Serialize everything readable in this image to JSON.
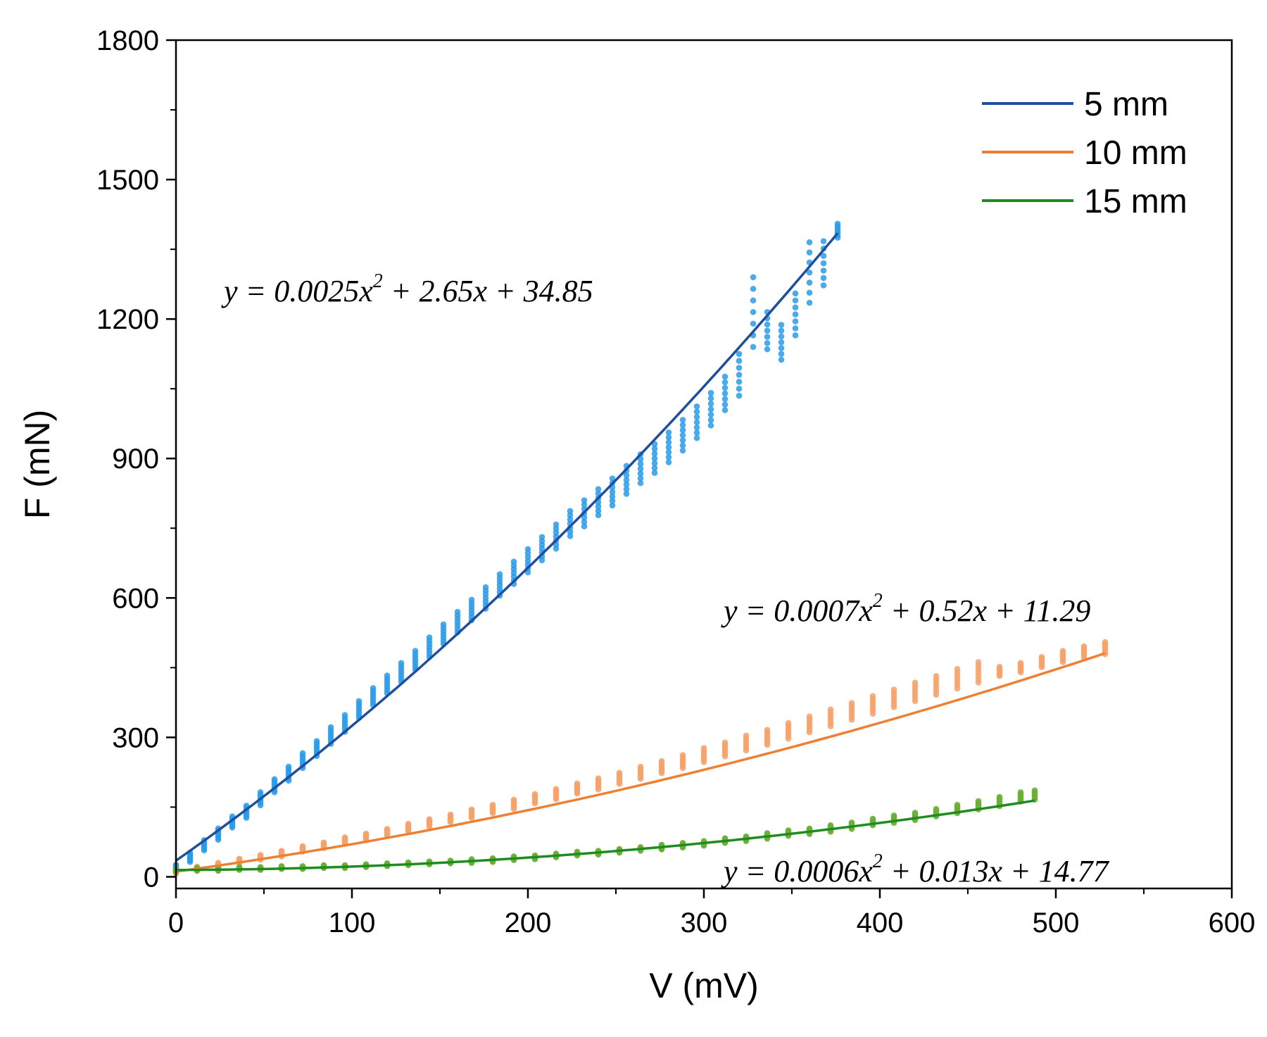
{
  "chart_data": {
    "type": "scatter",
    "title": "",
    "xlabel": "V (mV)",
    "ylabel": "F (mN)",
    "xlim": [
      0,
      600
    ],
    "ylim": [
      -25,
      1800
    ],
    "xticks": [
      0,
      100,
      200,
      300,
      400,
      500,
      600
    ],
    "yticks": [
      0,
      300,
      600,
      900,
      1200,
      1500,
      1800
    ],
    "grid": false,
    "legend_position": "top-right",
    "series": [
      {
        "name": "5 mm",
        "point_color": "#2b9be6",
        "fit_color": "#1f4e9e",
        "fit": {
          "a": 0.0025,
          "b": 2.65,
          "c": 34.85
        },
        "x_range": [
          0,
          376
        ],
        "equation": {
          "lhs": "y = 0.0025x",
          "exp": "2",
          "rhs": " + 2.65x + 34.85"
        },
        "dispersion": [
          [
            0,
            20,
            12
          ],
          [
            8,
            42,
            20
          ],
          [
            16,
            68,
            22
          ],
          [
            24,
            92,
            24
          ],
          [
            32,
            118,
            24
          ],
          [
            40,
            140,
            26
          ],
          [
            48,
            168,
            28
          ],
          [
            56,
            196,
            28
          ],
          [
            64,
            222,
            30
          ],
          [
            72,
            250,
            32
          ],
          [
            80,
            276,
            32
          ],
          [
            88,
            304,
            36
          ],
          [
            96,
            330,
            36
          ],
          [
            104,
            360,
            36
          ],
          [
            112,
            388,
            36
          ],
          [
            120,
            414,
            38
          ],
          [
            128,
            440,
            40
          ],
          [
            136,
            466,
            40
          ],
          [
            144,
            494,
            42
          ],
          [
            152,
            522,
            42
          ],
          [
            160,
            548,
            44
          ],
          [
            168,
            574,
            44
          ],
          [
            176,
            600,
            46
          ],
          [
            184,
            628,
            46
          ],
          [
            192,
            654,
            48
          ],
          [
            200,
            680,
            50
          ],
          [
            208,
            706,
            50
          ],
          [
            216,
            732,
            52
          ],
          [
            224,
            760,
            54
          ],
          [
            232,
            782,
            56
          ],
          [
            240,
            806,
            56
          ],
          [
            248,
            828,
            58
          ],
          [
            256,
            854,
            60
          ],
          [
            264,
            878,
            62
          ],
          [
            272,
            900,
            62
          ],
          [
            280,
            924,
            64
          ],
          [
            288,
            950,
            66
          ],
          [
            296,
            978,
            68
          ],
          [
            304,
            1006,
            70
          ],
          [
            312,
            1040,
            72
          ],
          [
            320,
            1080,
            90
          ],
          [
            328,
            1215,
            150
          ],
          [
            336,
            1175,
            80
          ],
          [
            344,
            1150,
            75
          ],
          [
            352,
            1210,
            90
          ],
          [
            360,
            1300,
            130
          ],
          [
            368,
            1320,
            95
          ],
          [
            376,
            1390,
            30
          ]
        ]
      },
      {
        "name": "10 mm",
        "point_color": "#f5a26b",
        "fit_color": "#ee7f33",
        "fit": {
          "a": 0.0007,
          "b": 0.52,
          "c": 11.29
        },
        "x_range": [
          0,
          528
        ],
        "equation": {
          "lhs": "y = 0.0007x",
          "exp": "2",
          "rhs": " + 0.52x + 11.29"
        },
        "dispersion": [
          [
            0,
            10,
            6
          ],
          [
            12,
            18,
            8
          ],
          [
            24,
            26,
            8
          ],
          [
            36,
            34,
            10
          ],
          [
            48,
            42,
            10
          ],
          [
            60,
            50,
            12
          ],
          [
            72,
            60,
            12
          ],
          [
            84,
            68,
            12
          ],
          [
            96,
            78,
            14
          ],
          [
            108,
            86,
            14
          ],
          [
            120,
            96,
            14
          ],
          [
            132,
            106,
            16
          ],
          [
            144,
            116,
            16
          ],
          [
            156,
            126,
            16
          ],
          [
            168,
            136,
            18
          ],
          [
            180,
            146,
            18
          ],
          [
            192,
            156,
            20
          ],
          [
            204,
            168,
            20
          ],
          [
            216,
            178,
            22
          ],
          [
            228,
            190,
            22
          ],
          [
            240,
            200,
            24
          ],
          [
            252,
            212,
            24
          ],
          [
            264,
            224,
            26
          ],
          [
            276,
            236,
            26
          ],
          [
            288,
            248,
            28
          ],
          [
            300,
            262,
            30
          ],
          [
            312,
            274,
            30
          ],
          [
            324,
            288,
            32
          ],
          [
            336,
            300,
            32
          ],
          [
            348,
            314,
            34
          ],
          [
            360,
            328,
            34
          ],
          [
            372,
            342,
            36
          ],
          [
            384,
            356,
            36
          ],
          [
            396,
            370,
            38
          ],
          [
            408,
            384,
            38
          ],
          [
            420,
            398,
            40
          ],
          [
            432,
            412,
            40
          ],
          [
            444,
            426,
            42
          ],
          [
            456,
            440,
            44
          ],
          [
            468,
            442,
            20
          ],
          [
            480,
            450,
            20
          ],
          [
            492,
            462,
            22
          ],
          [
            504,
            474,
            24
          ],
          [
            516,
            484,
            24
          ],
          [
            528,
            492,
            26
          ]
        ]
      },
      {
        "name": "15 mm",
        "point_color": "#6aaf36",
        "fit_color": "#1f8c1f",
        "fit": {
          "a": 0.0006,
          "b": 0.013,
          "c": 14.77
        },
        "x_range": [
          0,
          488
        ],
        "equation": {
          "lhs": "y = 0.0006x",
          "exp": "2",
          "rhs": " + 0.013x + 14.77"
        },
        "dispersion": [
          [
            0,
            14,
            6
          ],
          [
            12,
            16,
            6
          ],
          [
            24,
            16,
            6
          ],
          [
            36,
            18,
            6
          ],
          [
            48,
            18,
            6
          ],
          [
            60,
            20,
            6
          ],
          [
            72,
            20,
            6
          ],
          [
            84,
            22,
            6
          ],
          [
            96,
            22,
            6
          ],
          [
            108,
            24,
            6
          ],
          [
            120,
            26,
            6
          ],
          [
            132,
            28,
            6
          ],
          [
            144,
            30,
            6
          ],
          [
            156,
            32,
            6
          ],
          [
            168,
            34,
            8
          ],
          [
            180,
            36,
            8
          ],
          [
            192,
            40,
            8
          ],
          [
            204,
            42,
            8
          ],
          [
            216,
            46,
            8
          ],
          [
            228,
            50,
            8
          ],
          [
            240,
            52,
            8
          ],
          [
            252,
            56,
            8
          ],
          [
            264,
            60,
            8
          ],
          [
            276,
            64,
            10
          ],
          [
            288,
            68,
            10
          ],
          [
            300,
            72,
            10
          ],
          [
            312,
            78,
            10
          ],
          [
            324,
            82,
            10
          ],
          [
            336,
            88,
            12
          ],
          [
            348,
            94,
            12
          ],
          [
            360,
            98,
            12
          ],
          [
            372,
            104,
            14
          ],
          [
            384,
            110,
            14
          ],
          [
            396,
            118,
            14
          ],
          [
            408,
            124,
            16
          ],
          [
            420,
            130,
            16
          ],
          [
            432,
            138,
            16
          ],
          [
            444,
            146,
            18
          ],
          [
            456,
            154,
            18
          ],
          [
            468,
            162,
            20
          ],
          [
            480,
            172,
            20
          ],
          [
            488,
            176,
            20
          ]
        ]
      }
    ]
  }
}
